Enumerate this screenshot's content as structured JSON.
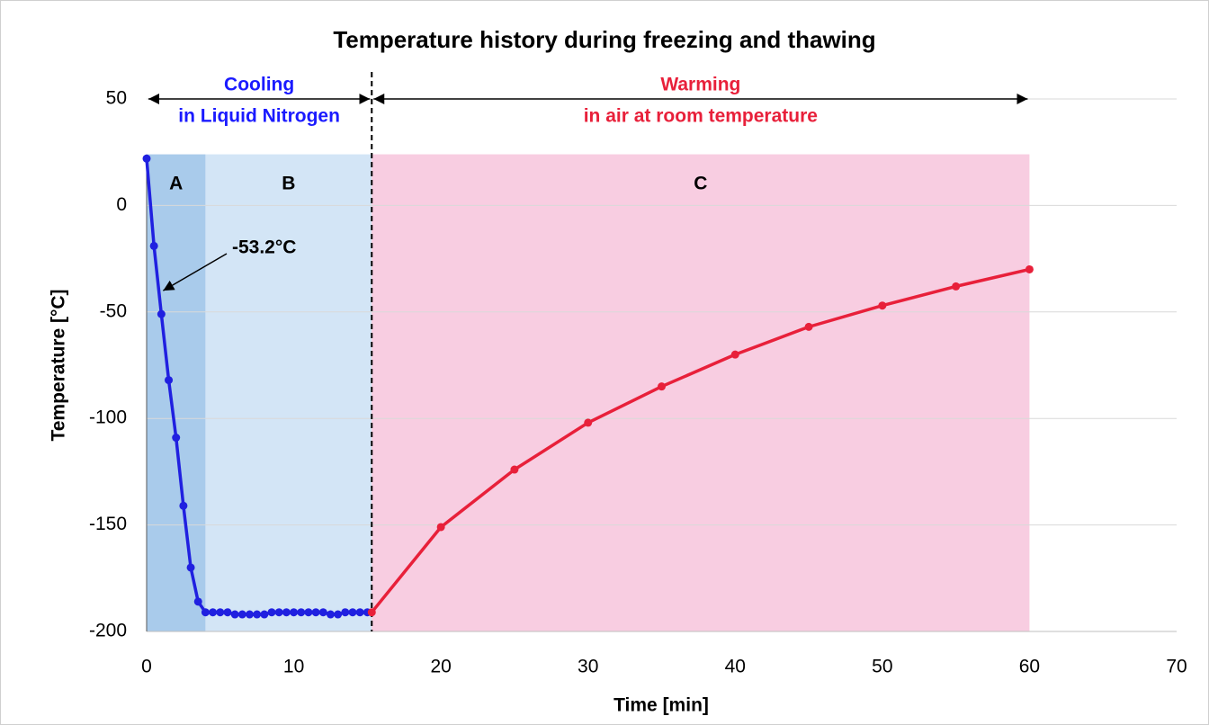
{
  "chart_data": {
    "type": "line",
    "title": "Temperature history during freezing and thawing",
    "x_label": "Time [min]",
    "y_label": "Temperature [°C]",
    "xlim": [
      0,
      70
    ],
    "xticks": [
      0,
      10,
      20,
      30,
      40,
      50,
      60,
      70
    ],
    "ylim": [
      -200,
      50
    ],
    "yticks": [
      -200,
      -150,
      -100,
      -50,
      0,
      50
    ],
    "grid": true,
    "series": [
      {
        "name": "Cooling",
        "color": "#2020e0",
        "x": [
          0,
          0.5,
          1,
          1.5,
          2,
          2.5,
          3,
          3.5,
          4,
          4.5,
          5,
          5.5,
          6,
          6.5,
          7,
          7.5,
          8,
          8.5,
          9,
          9.5,
          10,
          10.5,
          11,
          11.5,
          12,
          12.5,
          13,
          13.5,
          14,
          14.5,
          15
        ],
        "values": [
          22,
          -19,
          -51,
          -82,
          -109,
          -141,
          -170,
          -186,
          -191,
          -191,
          -191,
          -191,
          -192,
          -192,
          -192,
          -192,
          -192,
          -191,
          -191,
          -191,
          -191,
          -191,
          -191,
          -191,
          -191,
          -192,
          -192,
          -191,
          -191,
          -191,
          -191
        ]
      },
      {
        "name": "Warming",
        "color": "#e8203a",
        "x": [
          15.3,
          20,
          25,
          30,
          35,
          40,
          45,
          50,
          55,
          60
        ],
        "values": [
          -191,
          -151,
          -124,
          -102,
          -85,
          -70,
          -57,
          -47,
          -38,
          -30
        ]
      }
    ],
    "regions": [
      {
        "label": "A",
        "x": [
          0,
          4
        ],
        "top": 24,
        "color": "#a9cbeb"
      },
      {
        "label": "B",
        "x": [
          4,
          15.3
        ],
        "top": 24,
        "color": "#d3e5f6"
      },
      {
        "label": "C",
        "x": [
          15.3,
          60
        ],
        "top": 24,
        "color": "#f8cde1"
      }
    ],
    "divider": 15.3,
    "headers": [
      {
        "lines": [
          "Cooling",
          "in Liquid Nitrogen"
        ],
        "color": "#1a1aff",
        "x": [
          0,
          15.3
        ]
      },
      {
        "lines": [
          "Warming",
          "in air at room temperature"
        ],
        "color": "#e8203a",
        "x": [
          15.3,
          60
        ]
      }
    ],
    "annotation": {
      "text": "-53.2°C",
      "x": 1,
      "y": -40
    }
  }
}
